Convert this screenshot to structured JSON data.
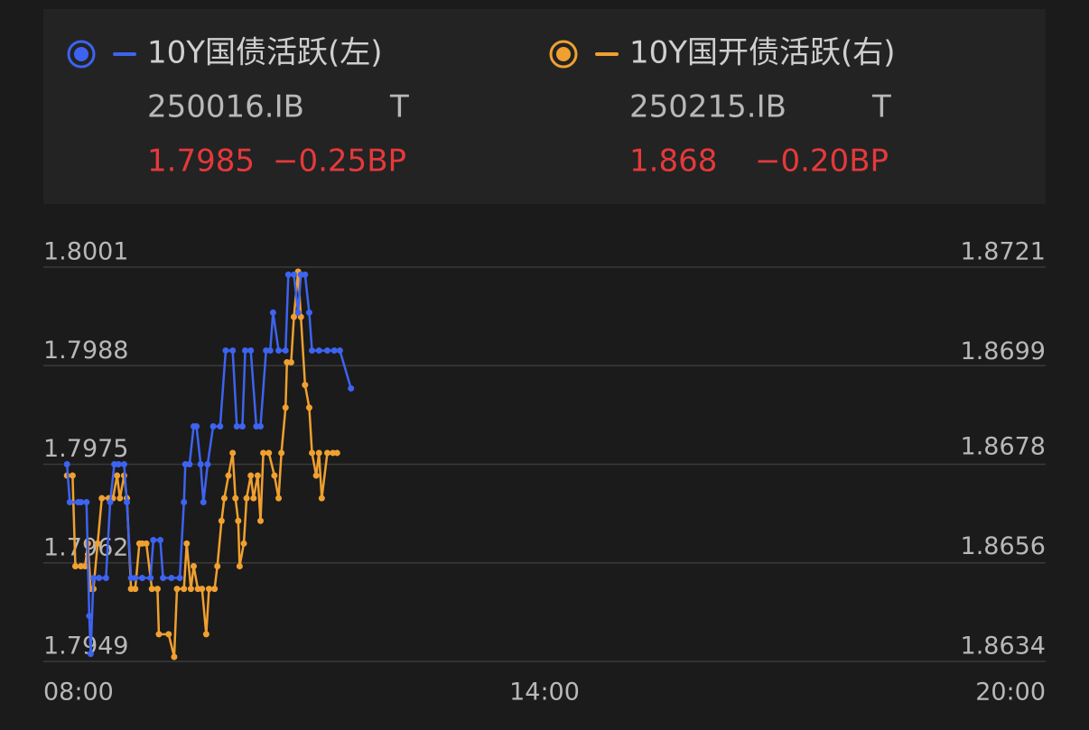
{
  "chart_data": {
    "type": "line",
    "series": [
      {
        "name": "10Y国债活跃(左)",
        "code": "250016.IB",
        "flag": "T",
        "last": 1.7985,
        "change": "−0.25BP",
        "color": "#3d63f0",
        "axis": "y",
        "x": [
          497,
          499,
          505,
          507,
          511,
          513,
          514,
          516,
          520,
          525,
          528,
          531,
          534,
          538,
          540,
          543,
          546,
          551,
          557,
          559,
          564,
          566,
          572,
          578,
          581,
          582,
          585,
          588,
          590,
          593,
          595,
          598,
          602,
          607,
          611,
          616,
          619,
          623,
          625,
          629,
          633,
          636,
          640,
          643,
          645,
          649,
          654,
          656,
          660,
          663,
          665,
          668,
          671,
          673,
          678,
          684,
          689,
          693,
          701
        ],
        "values": [
          1.7975,
          1.797,
          1.797,
          1.797,
          1.797,
          1.7955,
          1.795,
          1.796,
          1.796,
          1.796,
          1.797,
          1.7975,
          1.7975,
          1.7975,
          1.797,
          1.796,
          1.796,
          1.796,
          1.796,
          1.7965,
          1.7965,
          1.796,
          1.796,
          1.796,
          1.797,
          1.7975,
          1.7975,
          1.798,
          1.798,
          1.7975,
          1.797,
          1.7975,
          1.798,
          1.798,
          1.799,
          1.799,
          1.798,
          1.798,
          1.799,
          1.799,
          1.798,
          1.798,
          1.799,
          1.799,
          1.7995,
          1.799,
          1.799,
          1.8,
          1.8,
          1.7995,
          1.8,
          1.8,
          1.7995,
          1.799,
          1.799,
          1.799,
          1.799,
          1.799,
          1.7985
        ]
      },
      {
        "name": "10Y国开债活跃(右)",
        "code": "250215.IB",
        "flag": "T",
        "last": 1.868,
        "change": "−0.20BP",
        "color": "#f0a030",
        "axis": "y2",
        "x": [
          497,
          501,
          503,
          507,
          510,
          512,
          514,
          516,
          519,
          522,
          527,
          530,
          533,
          535,
          538,
          540,
          543,
          546,
          549,
          551,
          554,
          558,
          562,
          563,
          570,
          574,
          576,
          581,
          583,
          586,
          588,
          591,
          594,
          597,
          599,
          603,
          605,
          608,
          610,
          613,
          616,
          618,
          620,
          621,
          624,
          626,
          629,
          631,
          634,
          636,
          638,
          642,
          646,
          649,
          651,
          654,
          655,
          658,
          660,
          663,
          665,
          668,
          671,
          673,
          676,
          678,
          680,
          684,
          688,
          691
        ],
        "values": [
          1.8675,
          1.8675,
          1.8655,
          1.8655,
          1.8655,
          1.866,
          1.865,
          1.865,
          1.866,
          1.867,
          1.867,
          1.867,
          1.8675,
          1.867,
          1.8675,
          1.867,
          1.865,
          1.865,
          1.866,
          1.866,
          1.866,
          1.865,
          1.865,
          1.864,
          1.864,
          1.8635,
          1.865,
          1.865,
          1.866,
          1.865,
          1.8655,
          1.865,
          1.865,
          1.864,
          1.865,
          1.865,
          1.8655,
          1.8665,
          1.867,
          1.8675,
          1.868,
          1.867,
          1.8665,
          1.8655,
          1.866,
          1.867,
          1.8675,
          1.867,
          1.8675,
          1.8665,
          1.868,
          1.868,
          1.8675,
          1.867,
          1.868,
          1.869,
          1.87,
          1.87,
          1.871,
          1.872,
          1.871,
          1.8695,
          1.869,
          1.868,
          1.8675,
          1.868,
          1.867,
          1.868,
          1.868,
          1.868
        ]
      }
    ],
    "xlim": [
      480,
      1200
    ],
    "xticks": [
      {
        "value": 480,
        "label": "08:00"
      },
      {
        "value": 840,
        "label": "14:00"
      },
      {
        "value": 1200,
        "label": "20:00"
      }
    ],
    "ylim": [
      1.7949,
      1.8001
    ],
    "yticks": [
      1.8001,
      1.7988,
      1.7975,
      1.7962,
      1.7949
    ],
    "y2lim": [
      1.8634,
      1.8721
    ],
    "y2ticks": [
      1.8721,
      1.8699,
      1.8678,
      1.8656,
      1.8634
    ],
    "grid": true
  }
}
